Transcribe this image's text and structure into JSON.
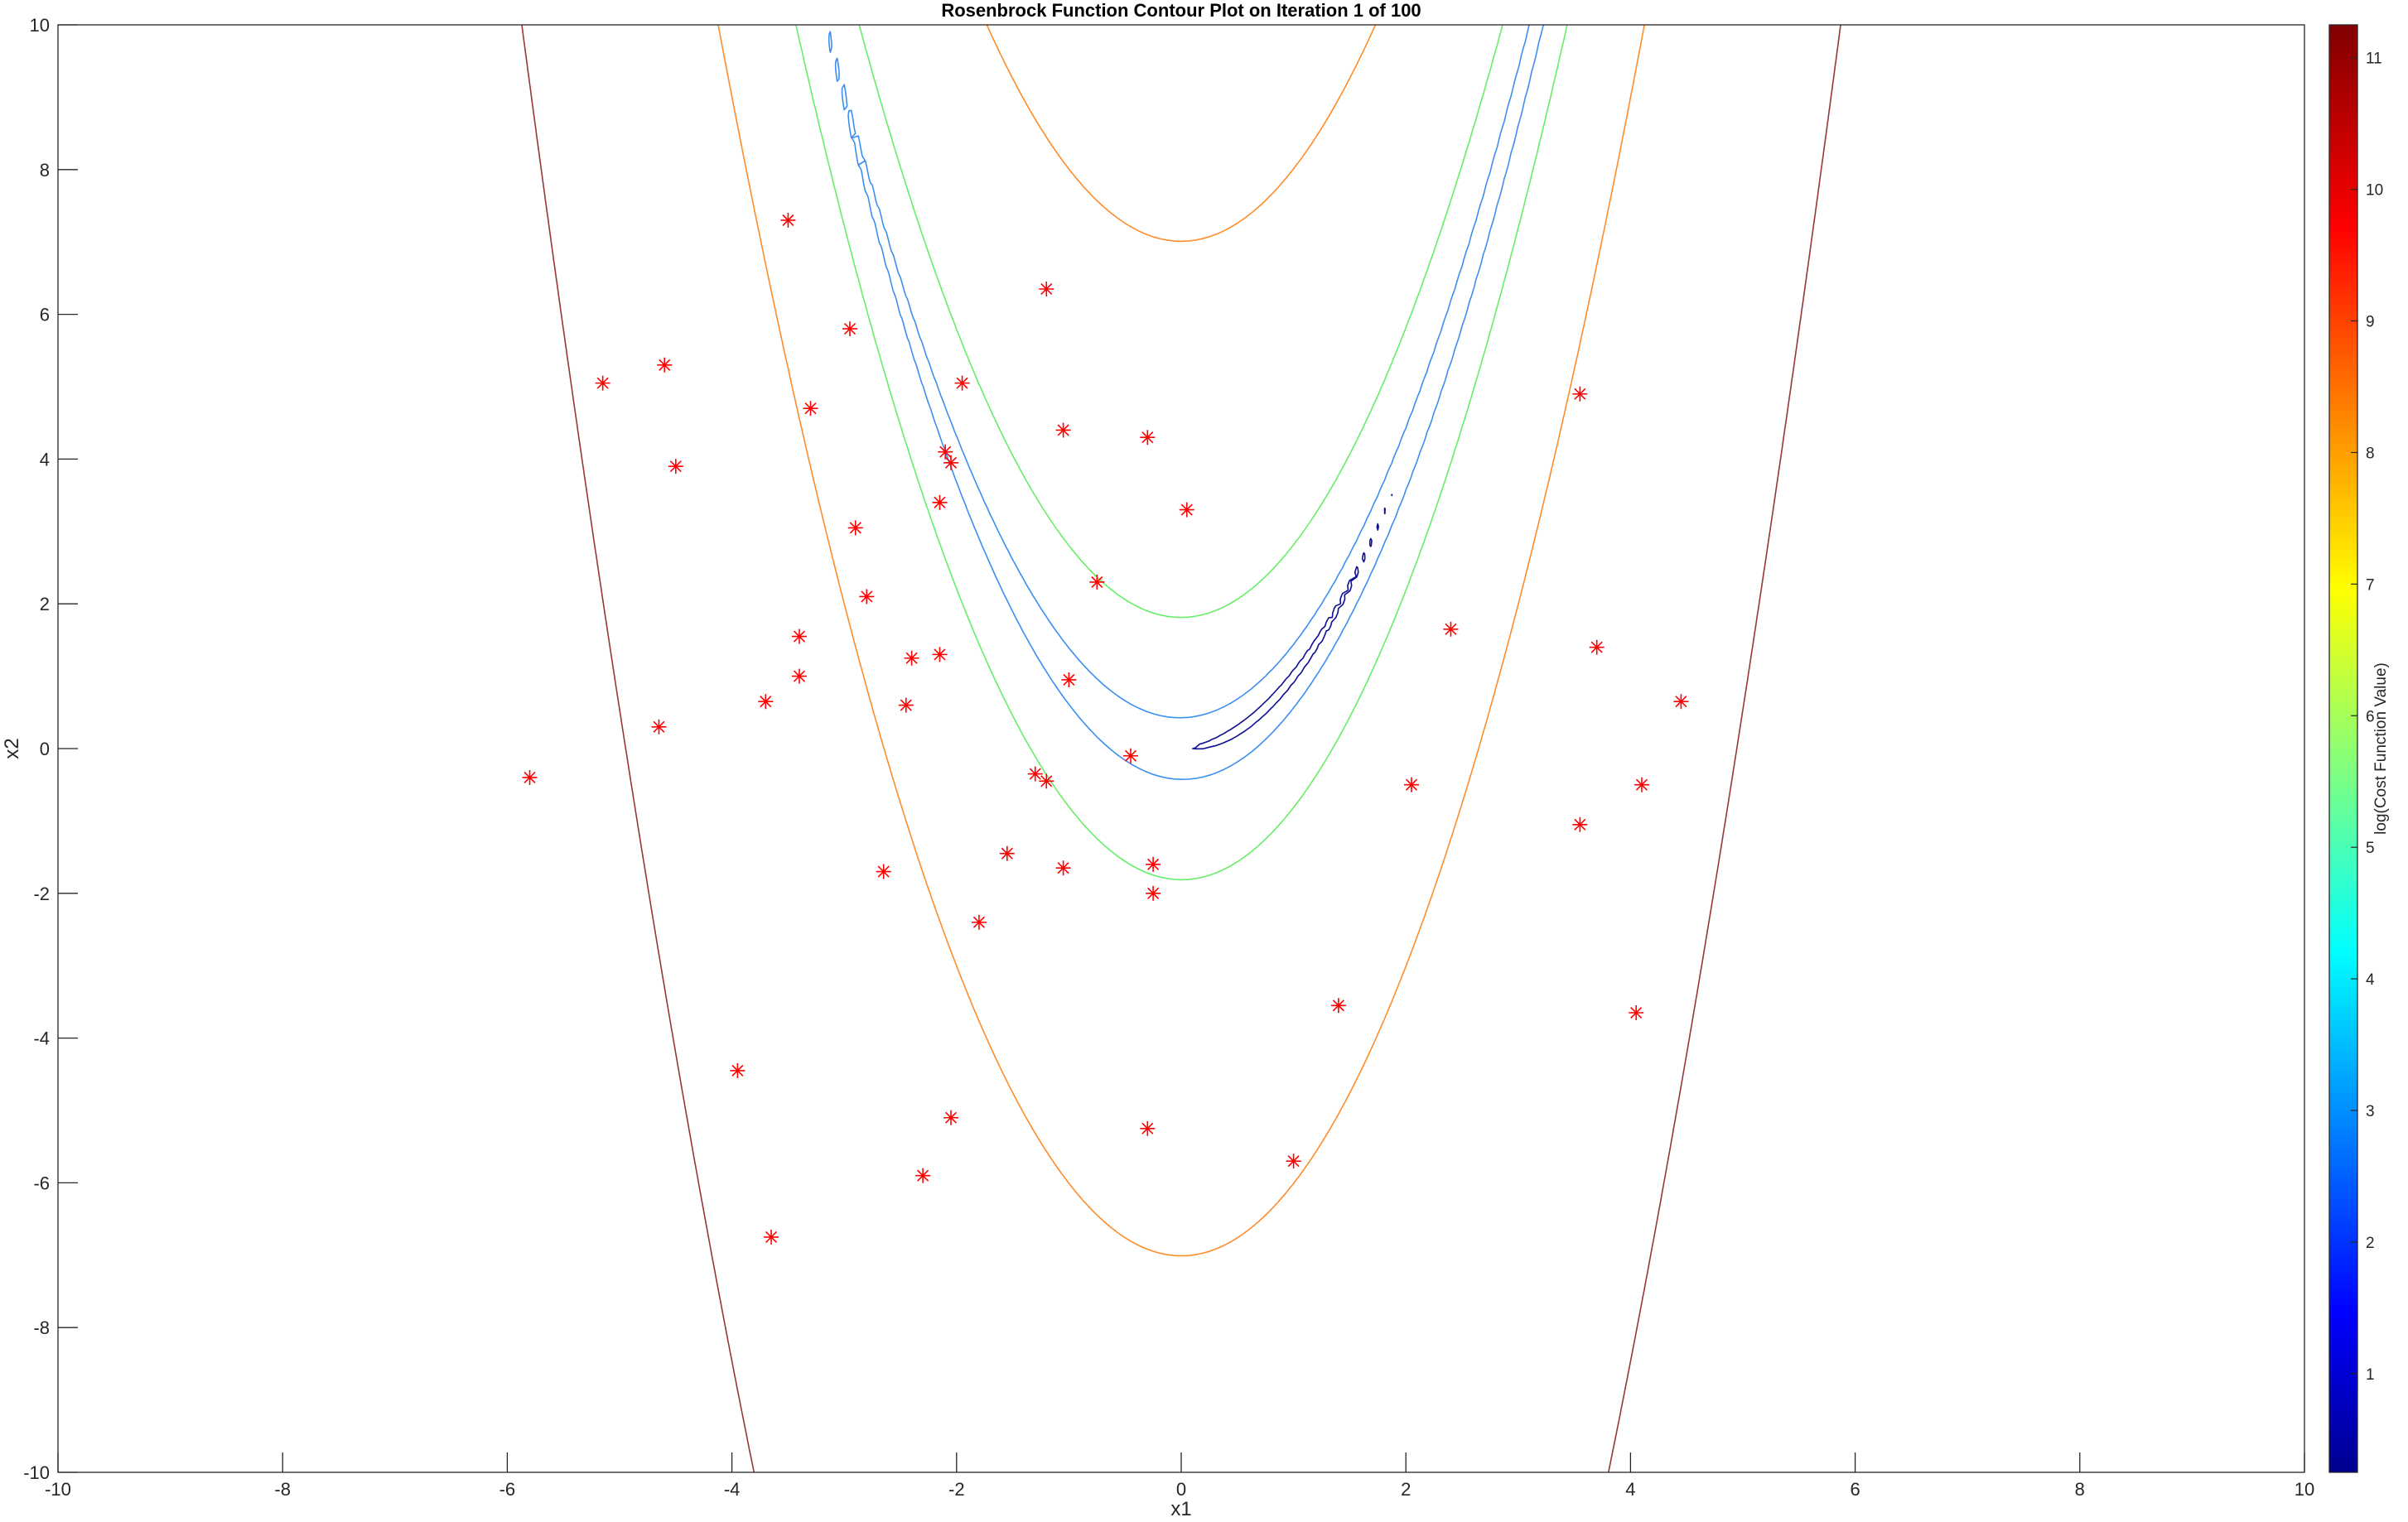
{
  "chart_data": {
    "type": "contour",
    "title": "Rosenbrock Function Contour Plot on Iteration 1 of 100",
    "xlabel": "x1",
    "ylabel": "x2",
    "xlim": [
      -10,
      10
    ],
    "ylim": [
      -10,
      10
    ],
    "xticks": [
      -10,
      -8,
      -6,
      -4,
      -2,
      0,
      2,
      4,
      6,
      8,
      10
    ],
    "yticks": [
      -10,
      -8,
      -6,
      -4,
      -2,
      0,
      2,
      4,
      6,
      8,
      10
    ],
    "grid": false,
    "colormap": "jet",
    "colorbar": {
      "label": "log(Cost Function Value)",
      "range": [
        0.25,
        11.25
      ],
      "ticks": [
        1,
        2,
        3,
        4,
        5,
        6,
        7,
        8,
        9,
        10,
        11
      ]
    },
    "contour_levels": [
      {
        "level": 0.6,
        "color": "#0e0e94"
      },
      {
        "level": 3.0,
        "color": "#3c8ff0"
      },
      {
        "level": 5.8,
        "color": "#66ee66"
      },
      {
        "level": 8.5,
        "color": "#ff8c2a"
      },
      {
        "level": 11.0,
        "color": "#963838"
      }
    ],
    "particles": {
      "marker": "asterisk",
      "color": "#ff0000",
      "points": [
        [
          -5.8,
          -0.4
        ],
        [
          -5.15,
          5.05
        ],
        [
          -4.6,
          5.3
        ],
        [
          -4.5,
          3.9
        ],
        [
          -4.65,
          0.3
        ],
        [
          -3.5,
          7.3
        ],
        [
          -3.3,
          4.7
        ],
        [
          -3.4,
          1.55
        ],
        [
          -3.4,
          1.0
        ],
        [
          -3.7,
          0.65
        ],
        [
          -2.95,
          5.8
        ],
        [
          -2.9,
          3.05
        ],
        [
          -2.8,
          2.1
        ],
        [
          -2.65,
          -1.7
        ],
        [
          -2.4,
          1.25
        ],
        [
          -2.45,
          0.6
        ],
        [
          -2.15,
          3.4
        ],
        [
          -2.1,
          4.1
        ],
        [
          -2.05,
          3.95
        ],
        [
          -1.95,
          5.05
        ],
        [
          -2.15,
          1.3
        ],
        [
          -1.2,
          6.35
        ],
        [
          -1.05,
          4.4
        ],
        [
          -0.75,
          2.3
        ],
        [
          -1.0,
          0.95
        ],
        [
          -1.3,
          -0.35
        ],
        [
          -1.2,
          -0.45
        ],
        [
          -1.55,
          -1.45
        ],
        [
          -1.8,
          -2.4
        ],
        [
          -1.05,
          -1.65
        ],
        [
          -0.3,
          4.3
        ],
        [
          0.05,
          3.3
        ],
        [
          -0.45,
          -0.1
        ],
        [
          -0.25,
          -1.6
        ],
        [
          -0.25,
          -2.0
        ],
        [
          -3.95,
          -4.45
        ],
        [
          -2.05,
          -5.1
        ],
        [
          -2.3,
          -5.9
        ],
        [
          -3.65,
          -6.75
        ],
        [
          -0.3,
          -5.25
        ],
        [
          1.0,
          -5.7
        ],
        [
          1.4,
          -3.55
        ],
        [
          2.05,
          -0.5
        ],
        [
          2.4,
          1.65
        ],
        [
          3.55,
          4.9
        ],
        [
          3.55,
          -1.05
        ],
        [
          3.7,
          1.4
        ],
        [
          4.1,
          -0.5
        ],
        [
          4.45,
          0.65
        ],
        [
          4.05,
          -3.65
        ]
      ]
    }
  }
}
